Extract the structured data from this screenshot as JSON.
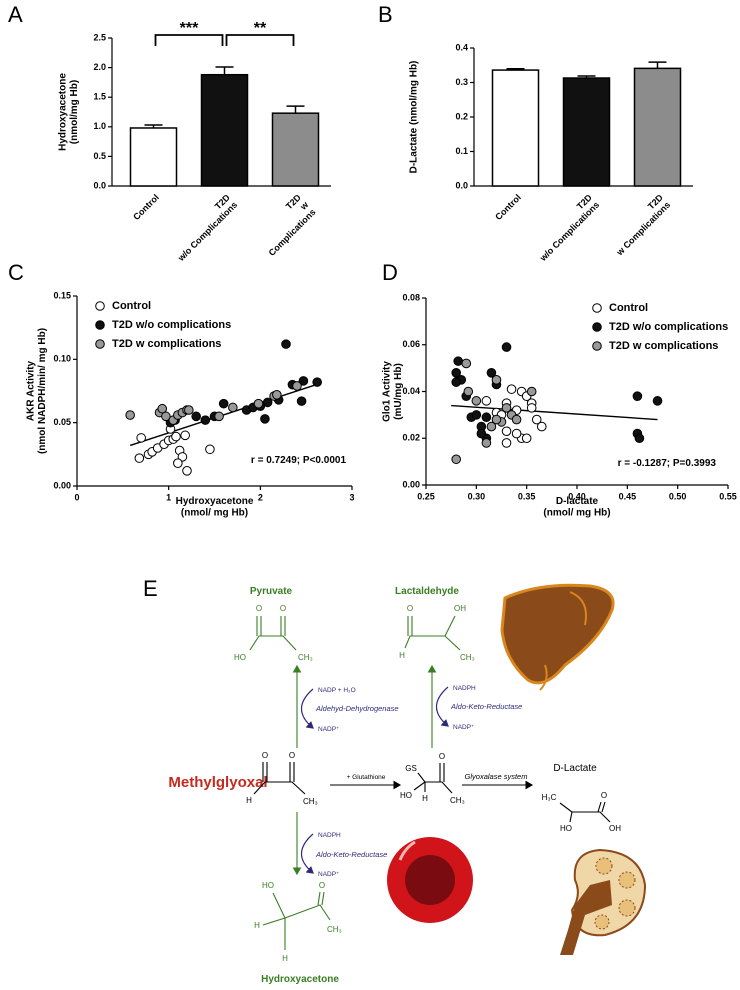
{
  "chart_data": [
    {
      "type": "bar",
      "label": "A",
      "ylabel": "Hydroxyacetone\n(nmol/mg Hb)",
      "categories": [
        "Control",
        "T2D\nw/o Complications",
        "T2D\nw\nComplications"
      ],
      "values": [
        0.98,
        1.88,
        1.23
      ],
      "errors": [
        0.05,
        0.13,
        0.12
      ],
      "colors": [
        "#ffffff",
        "#111111",
        "#8c8c8c"
      ],
      "ylim": [
        0,
        2.5
      ],
      "yticks": [
        {
          "value": 0,
          "label": "0.0"
        },
        0.5,
        {
          "value": 1,
          "label": "1.0"
        },
        1.5,
        {
          "value": 2,
          "label": "2.0"
        },
        2.5
      ],
      "annotations": [
        "***",
        "**"
      ],
      "grid": false
    },
    {
      "type": "bar",
      "label": "B",
      "ylabel": "D-Lactate (nmol/mg Hb)",
      "categories": [
        "Control",
        "T2D\nw/o Complications",
        "T2D\nw Complications"
      ],
      "values": [
        0.336,
        0.313,
        0.341
      ],
      "errors": [
        0.004,
        0.006,
        0.018
      ],
      "colors": [
        "#ffffff",
        "#111111",
        "#8c8c8c"
      ],
      "ylim": [
        0,
        0.4
      ],
      "yticks": [
        {
          "value": 0,
          "label": "0.0"
        },
        0.1,
        0.2,
        0.3,
        0.4
      ],
      "grid": false
    },
    {
      "type": "scatter",
      "label": "C",
      "xlabel": "Hydroxyacetone\n(nmol/ mg Hb)",
      "ylabel": "AKR Activity\n(nmol NADPH/min/ mg Hb)",
      "xlim": [
        0,
        3
      ],
      "xticks": [
        0,
        1,
        2,
        3
      ],
      "ylim": [
        0,
        0.15
      ],
      "yticks": [
        {
          "value": 0,
          "label": "0.00"
        },
        0.05,
        {
          "value": 0.1,
          "label": "0.10"
        },
        0.15
      ],
      "legend": "upper left",
      "grid": false,
      "series": [
        {
          "name": "Control",
          "color": "#ffffff",
          "x": [
            0.7,
            0.68,
            0.78,
            0.82,
            0.88,
            0.95,
            1.0,
            1.05,
            1.08,
            1.12,
            1.15,
            1.18,
            1.2,
            1.45,
            1.1,
            1.02
          ],
          "y": [
            0.038,
            0.022,
            0.025,
            0.027,
            0.03,
            0.033,
            0.036,
            0.037,
            0.039,
            0.028,
            0.023,
            0.04,
            0.012,
            0.029,
            0.018,
            0.045
          ]
        },
        {
          "name": "T2D w/o complications",
          "color": "#111111",
          "x": [
            1.02,
            1.07,
            1.3,
            1.4,
            1.6,
            1.85,
            1.92,
            2.05,
            2.08,
            2.2,
            2.28,
            2.35,
            2.45,
            2.47,
            2.62,
            1.5,
            2.0
          ],
          "y": [
            0.05,
            0.052,
            0.055,
            0.052,
            0.065,
            0.06,
            0.062,
            0.053,
            0.066,
            0.068,
            0.112,
            0.08,
            0.067,
            0.083,
            0.082,
            0.055,
            0.063
          ]
        },
        {
          "name": "T2D w complications",
          "color": "#999999",
          "x": [
            0.58,
            0.9,
            0.93,
            0.97,
            1.05,
            1.1,
            1.15,
            1.2,
            1.22,
            1.55,
            1.7,
            1.98,
            2.15,
            2.18,
            2.4
          ],
          "y": [
            0.056,
            0.058,
            0.061,
            0.055,
            0.052,
            0.056,
            0.058,
            0.06,
            0.06,
            0.055,
            0.062,
            0.065,
            0.071,
            0.072,
            0.079
          ]
        }
      ],
      "fit": {
        "x": [
          0.58,
          2.65
        ],
        "y": [
          0.032,
          0.081
        ]
      },
      "annotation": "r = 0.7249; P<0.0001"
    },
    {
      "type": "scatter",
      "label": "D",
      "xlabel": "D-lactate\n(nmol/ mg Hb)",
      "ylabel": "Glo1 Activity\n(mU/mg Hb)",
      "xlim": [
        0.25,
        0.55
      ],
      "xticks": [
        0.25,
        {
          "value": 0.3,
          "label": "0.30"
        },
        0.35,
        {
          "value": 0.4,
          "label": "0.40"
        },
        0.45,
        {
          "value": 0.5,
          "label": "0.50"
        },
        0.55
      ],
      "ylim": [
        0,
        0.08
      ],
      "yticks": [
        {
          "value": 0,
          "label": "0.00"
        },
        0.02,
        0.04,
        0.06,
        0.08
      ],
      "legend": "upper right",
      "grid": false,
      "series": [
        {
          "name": "Control",
          "color": "#ffffff",
          "x": [
            0.31,
            0.32,
            0.325,
            0.33,
            0.335,
            0.34,
            0.345,
            0.35,
            0.355,
            0.345,
            0.36,
            0.365,
            0.34,
            0.33,
            0.355,
            0.35,
            0.33
          ],
          "y": [
            0.036,
            0.031,
            0.03,
            0.023,
            0.041,
            0.032,
            0.04,
            0.038,
            0.035,
            0.02,
            0.028,
            0.025,
            0.022,
            0.035,
            0.033,
            0.02,
            0.018
          ]
        },
        {
          "name": "T2D w/o complications",
          "color": "#111111",
          "x": [
            0.28,
            0.282,
            0.285,
            0.28,
            0.29,
            0.295,
            0.3,
            0.305,
            0.31,
            0.31,
            0.315,
            0.32,
            0.33,
            0.46,
            0.46,
            0.462,
            0.48,
            0.305
          ],
          "y": [
            0.048,
            0.053,
            0.045,
            0.044,
            0.038,
            0.029,
            0.03,
            0.025,
            0.02,
            0.029,
            0.048,
            0.043,
            0.059,
            0.038,
            0.022,
            0.02,
            0.036,
            0.022
          ]
        },
        {
          "name": "T2D w complications",
          "color": "#999999",
          "x": [
            0.28,
            0.29,
            0.292,
            0.3,
            0.31,
            0.315,
            0.32,
            0.325,
            0.33,
            0.335,
            0.34,
            0.355,
            0.32
          ],
          "y": [
            0.011,
            0.052,
            0.04,
            0.036,
            0.018,
            0.025,
            0.045,
            0.027,
            0.033,
            0.03,
            0.028,
            0.04,
            0.028
          ]
        }
      ],
      "fit": {
        "x": [
          0.275,
          0.48
        ],
        "y": [
          0.034,
          0.028
        ]
      },
      "annotation": "r = -0.1287; P=0.3993"
    }
  ],
  "diagram": {
    "label": "E",
    "compounds": [
      {
        "name": "Pyruvate",
        "atoms": [
          "O",
          "O",
          "HO",
          "CH₃"
        ]
      },
      {
        "name": "Lactaldehyde",
        "atoms": [
          "O",
          "OH",
          "H",
          "CH₃"
        ]
      },
      {
        "name": "Methylglyoxal",
        "atoms": [
          "O",
          "O",
          "H",
          "CH₃"
        ]
      },
      {
        "name": "Hydroxyacetone",
        "atoms": [
          "HO",
          "O",
          "H",
          "H",
          "CH₃"
        ]
      },
      {
        "name": "D-Lactate",
        "atoms": [
          "H₃C",
          "O",
          "HO",
          "OH"
        ]
      }
    ],
    "intermediate": {
      "atoms": [
        "GS",
        "O",
        "HO",
        "H",
        "CH₃"
      ]
    },
    "reactions": [
      {
        "cofactor_in": "NADP + H₂O",
        "enzyme": "Aldehyd-Dehydrogenase",
        "cofactor_out": "NADP⁺"
      },
      {
        "cofactor_in": "NADPH",
        "enzyme": "Aldo-Keto-Reductase",
        "cofactor_out": "NADP⁺"
      },
      {
        "cofactor_in": "NADPH",
        "enzyme": "Aldo-Keto-Reductase",
        "cofactor_out": "NADP⁺"
      }
    ],
    "steps": [
      "+ Glutathione",
      "Glyoxalase system"
    ]
  }
}
